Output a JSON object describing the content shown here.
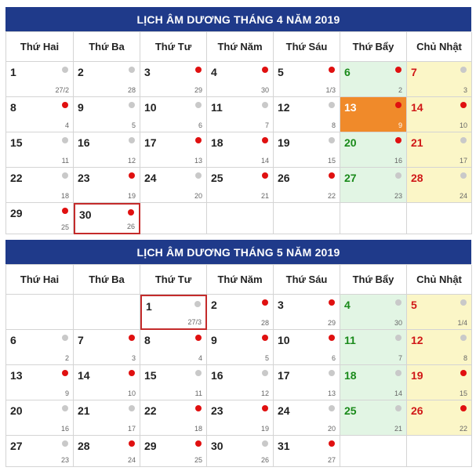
{
  "weekdays": [
    "Thứ Hai",
    "Thứ Ba",
    "Thứ Tư",
    "Thứ Năm",
    "Thứ Sáu",
    "Thứ Bẩy",
    "Chủ Nhật"
  ],
  "colors": {
    "header_bg": "#1f3a8a",
    "saturday_bg": "#e2f5e4",
    "sunday_bg": "#fbf6c7",
    "highlight": "#f08a2a",
    "good_day_dot": "#e01010",
    "normal_day_dot": "#c9c9c9",
    "selected_border": "#c42b2b"
  },
  "calendars": [
    {
      "title": "LỊCH ÂM DƯƠNG THÁNG 4 NĂM 2019",
      "weeks": [
        [
          {
            "solar": "1",
            "lunar": "27/2",
            "dot": "grey"
          },
          {
            "solar": "2",
            "lunar": "28",
            "dot": "grey"
          },
          {
            "solar": "3",
            "lunar": "29",
            "dot": "red"
          },
          {
            "solar": "4",
            "lunar": "30",
            "dot": "red"
          },
          {
            "solar": "5",
            "lunar": "1/3",
            "dot": "red"
          },
          {
            "solar": "6",
            "lunar": "2",
            "dot": "red"
          },
          {
            "solar": "7",
            "lunar": "3",
            "dot": "grey"
          }
        ],
        [
          {
            "solar": "8",
            "lunar": "4",
            "dot": "red"
          },
          {
            "solar": "9",
            "lunar": "5",
            "dot": "grey"
          },
          {
            "solar": "10",
            "lunar": "6",
            "dot": "grey"
          },
          {
            "solar": "11",
            "lunar": "7",
            "dot": "grey"
          },
          {
            "solar": "12",
            "lunar": "8",
            "dot": "grey"
          },
          {
            "solar": "13",
            "lunar": "9",
            "dot": "red",
            "today": true
          },
          {
            "solar": "14",
            "lunar": "10",
            "dot": "red"
          }
        ],
        [
          {
            "solar": "15",
            "lunar": "11",
            "dot": "grey"
          },
          {
            "solar": "16",
            "lunar": "12",
            "dot": "grey"
          },
          {
            "solar": "17",
            "lunar": "13",
            "dot": "red"
          },
          {
            "solar": "18",
            "lunar": "14",
            "dot": "red"
          },
          {
            "solar": "19",
            "lunar": "15",
            "dot": "grey"
          },
          {
            "solar": "20",
            "lunar": "16",
            "dot": "red"
          },
          {
            "solar": "21",
            "lunar": "17",
            "dot": "grey"
          }
        ],
        [
          {
            "solar": "22",
            "lunar": "18",
            "dot": "grey"
          },
          {
            "solar": "23",
            "lunar": "19",
            "dot": "red"
          },
          {
            "solar": "24",
            "lunar": "20",
            "dot": "grey"
          },
          {
            "solar": "25",
            "lunar": "21",
            "dot": "red"
          },
          {
            "solar": "26",
            "lunar": "22",
            "dot": "red"
          },
          {
            "solar": "27",
            "lunar": "23",
            "dot": "grey"
          },
          {
            "solar": "28",
            "lunar": "24",
            "dot": "grey"
          }
        ],
        [
          {
            "solar": "29",
            "lunar": "25",
            "dot": "red"
          },
          {
            "solar": "30",
            "lunar": "26",
            "dot": "red",
            "selected": true
          },
          null,
          null,
          null,
          null,
          null
        ]
      ]
    },
    {
      "title": "LỊCH ÂM DƯƠNG THÁNG 5 NĂM 2019",
      "weeks": [
        [
          null,
          null,
          {
            "solar": "1",
            "lunar": "27/3",
            "dot": "grey",
            "selected": true
          },
          {
            "solar": "2",
            "lunar": "28",
            "dot": "red"
          },
          {
            "solar": "3",
            "lunar": "29",
            "dot": "red"
          },
          {
            "solar": "4",
            "lunar": "30",
            "dot": "grey"
          },
          {
            "solar": "5",
            "lunar": "1/4",
            "dot": "grey"
          }
        ],
        [
          {
            "solar": "6",
            "lunar": "2",
            "dot": "grey"
          },
          {
            "solar": "7",
            "lunar": "3",
            "dot": "red"
          },
          {
            "solar": "8",
            "lunar": "4",
            "dot": "red"
          },
          {
            "solar": "9",
            "lunar": "5",
            "dot": "red"
          },
          {
            "solar": "10",
            "lunar": "6",
            "dot": "red"
          },
          {
            "solar": "11",
            "lunar": "7",
            "dot": "grey"
          },
          {
            "solar": "12",
            "lunar": "8",
            "dot": "grey"
          }
        ],
        [
          {
            "solar": "13",
            "lunar": "9",
            "dot": "red"
          },
          {
            "solar": "14",
            "lunar": "10",
            "dot": "red"
          },
          {
            "solar": "15",
            "lunar": "11",
            "dot": "grey"
          },
          {
            "solar": "16",
            "lunar": "12",
            "dot": "grey"
          },
          {
            "solar": "17",
            "lunar": "13",
            "dot": "grey"
          },
          {
            "solar": "18",
            "lunar": "14",
            "dot": "grey"
          },
          {
            "solar": "19",
            "lunar": "15",
            "dot": "red"
          }
        ],
        [
          {
            "solar": "20",
            "lunar": "16",
            "dot": "grey"
          },
          {
            "solar": "21",
            "lunar": "17",
            "dot": "grey"
          },
          {
            "solar": "22",
            "lunar": "18",
            "dot": "red"
          },
          {
            "solar": "23",
            "lunar": "19",
            "dot": "red"
          },
          {
            "solar": "24",
            "lunar": "20",
            "dot": "grey"
          },
          {
            "solar": "25",
            "lunar": "21",
            "dot": "grey"
          },
          {
            "solar": "26",
            "lunar": "22",
            "dot": "red"
          }
        ],
        [
          {
            "solar": "27",
            "lunar": "23",
            "dot": "grey"
          },
          {
            "solar": "28",
            "lunar": "24",
            "dot": "red"
          },
          {
            "solar": "29",
            "lunar": "25",
            "dot": "red"
          },
          {
            "solar": "30",
            "lunar": "26",
            "dot": "grey"
          },
          {
            "solar": "31",
            "lunar": "27",
            "dot": "red"
          },
          null,
          null
        ]
      ]
    }
  ]
}
